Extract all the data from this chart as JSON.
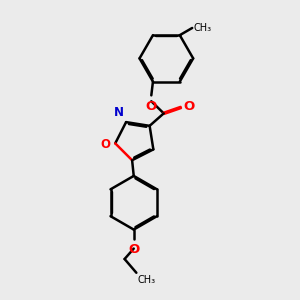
{
  "background_color": "#ebebeb",
  "bond_color": "#000000",
  "oxygen_color": "#ff0000",
  "nitrogen_color": "#0000cd",
  "lw": 1.8,
  "dbo": 0.018,
  "figsize": [
    3.0,
    3.0
  ],
  "dpi": 100,
  "xlim": [
    0.0,
    6.0
  ],
  "ylim": [
    0.0,
    9.0
  ]
}
